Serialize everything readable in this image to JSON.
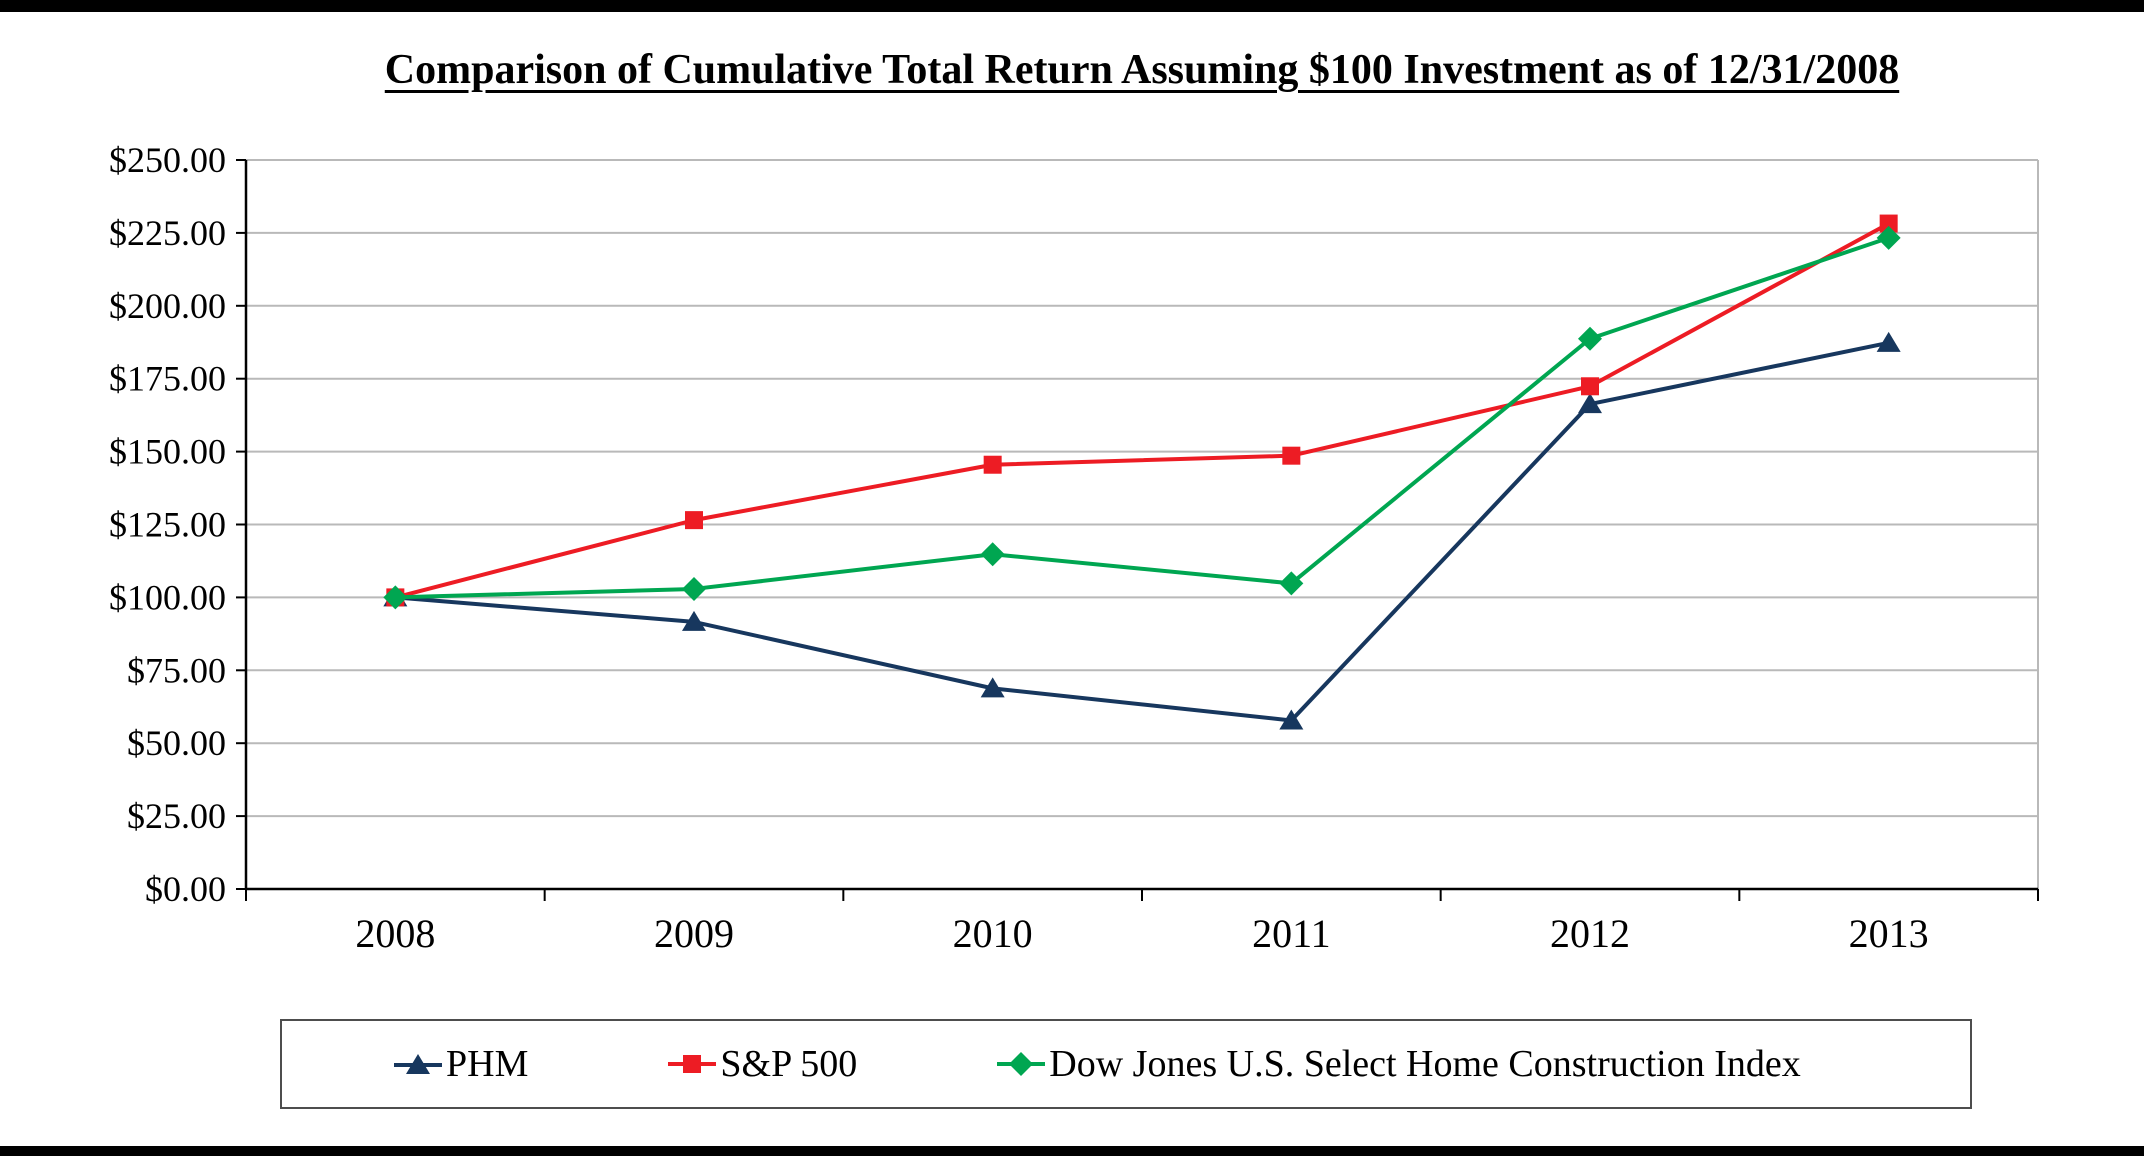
{
  "page": {
    "title": "Comparison of Cumulative Total Return Assuming $100 Investment as of 12/31/2008"
  },
  "chart_data": {
    "type": "line",
    "title": "Comparison of Cumulative Total Return Assuming $100 Investment as of 12/31/2008",
    "categories": [
      "2008",
      "2009",
      "2010",
      "2011",
      "2012",
      "2013"
    ],
    "series": [
      {
        "name": "PHM",
        "marker": "triangle",
        "color": "#17375E",
        "values": [
          100,
          91.6,
          68.8,
          57.8,
          166.3,
          187.3
        ]
      },
      {
        "name": "S&P 500",
        "marker": "square",
        "color": "#ED1C24",
        "values": [
          100,
          126.5,
          145.5,
          148.6,
          172.4,
          228.2
        ]
      },
      {
        "name": "Dow Jones U.S. Select Home Construction Index",
        "marker": "diamond",
        "color": "#00A651",
        "values": [
          100,
          102.9,
          114.8,
          104.8,
          188.7,
          223.3
        ]
      }
    ],
    "ylim": [
      0,
      250
    ],
    "ytick_step": 25,
    "ytick_prefix": "$",
    "ytick_decimals": 2,
    "xlabel": "",
    "ylabel": "",
    "grid": "horizontal",
    "legend_position": "bottom"
  },
  "colors": {
    "grid": "#b9b9b9",
    "axis": "#000000",
    "background": "#ffffff",
    "edge_bars": "#000000",
    "legend_border": "#4d4d4d"
  }
}
